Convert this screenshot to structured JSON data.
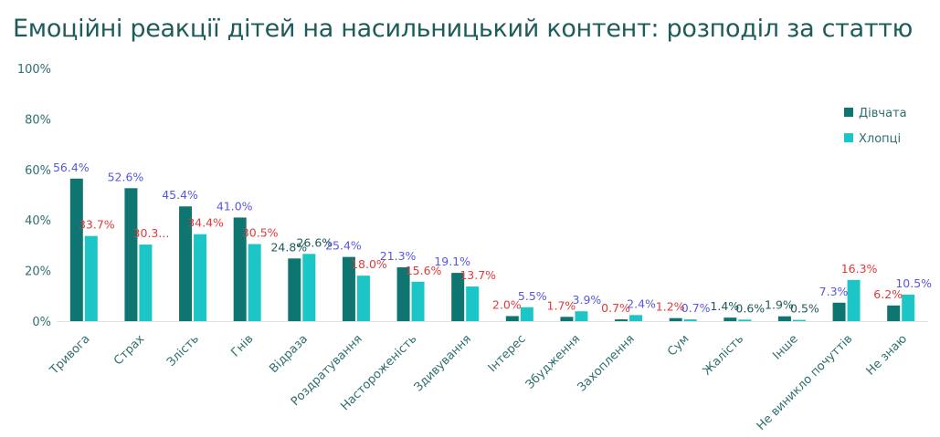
{
  "chart_data": {
    "type": "bar",
    "title": "Емоційні реакції дітей на насильницький контент: розподіл за статтю",
    "xlabel": "",
    "ylabel": "",
    "ylim": [
      0,
      100
    ],
    "yticks": [
      "0%",
      "20%",
      "40%",
      "60%",
      "80%",
      "100%"
    ],
    "legend_position": "top-right",
    "grid": false,
    "categories": [
      "Тривога",
      "Страх",
      "Злість",
      "Гнів",
      "Відраза",
      "Роздратування",
      "Настороженість",
      "Здивування",
      "Інтерес",
      "Збудження",
      "Захоплення",
      "Сум",
      "Жалість",
      "Інше",
      "Не виникло почуттів",
      "Не знаю"
    ],
    "series": [
      {
        "name": "Дівчата",
        "color": "#0f7570",
        "values": [
          56.4,
          52.6,
          45.4,
          41.0,
          24.8,
          25.4,
          21.3,
          19.1,
          2.0,
          1.7,
          0.7,
          1.2,
          1.4,
          1.9,
          7.3,
          6.2
        ],
        "labels": [
          "56.4%",
          "52.6%",
          "45.4%",
          "41.0%",
          "24.8%",
          "25.4%",
          "21.3%",
          "19.1%",
          "2.0%",
          "1.7%",
          "0.7%",
          "1.2%",
          "1.4%",
          "1.9%",
          "7.3%",
          "6.2%"
        ],
        "label_colors": [
          "#5757e0",
          "#5757e0",
          "#5757e0",
          "#5757e0",
          "#1f5a5a",
          "#5757e0",
          "#5757e0",
          "#5757e0",
          "#e03a3a",
          "#e03a3a",
          "#e03a3a",
          "#e03a3a",
          "#1f5a5a",
          "#1f5a5a",
          "#5757e0",
          "#e03a3a"
        ]
      },
      {
        "name": "Хлопці",
        "color": "#1cc6c6",
        "values": [
          33.7,
          30.3,
          34.4,
          30.5,
          26.6,
          18.0,
          15.6,
          13.7,
          5.5,
          3.9,
          2.4,
          0.7,
          0.6,
          0.5,
          16.3,
          10.5
        ],
        "labels": [
          "33.7%",
          "30.3...",
          "34.4%",
          "30.5%",
          "26.6%",
          "18.0%",
          "15.6%",
          "13.7%",
          "5.5%",
          "3.9%",
          "2.4%",
          "0.7%",
          "0.6%",
          "0.5%",
          "16.3%",
          "10.5%"
        ],
        "label_colors": [
          "#e03a3a",
          "#e03a3a",
          "#e03a3a",
          "#e03a3a",
          "#1f5a5a",
          "#e03a3a",
          "#e03a3a",
          "#e03a3a",
          "#5757e0",
          "#5757e0",
          "#5757e0",
          "#5757e0",
          "#1f5a5a",
          "#1f5a5a",
          "#e03a3a",
          "#5757e0"
        ]
      }
    ]
  }
}
